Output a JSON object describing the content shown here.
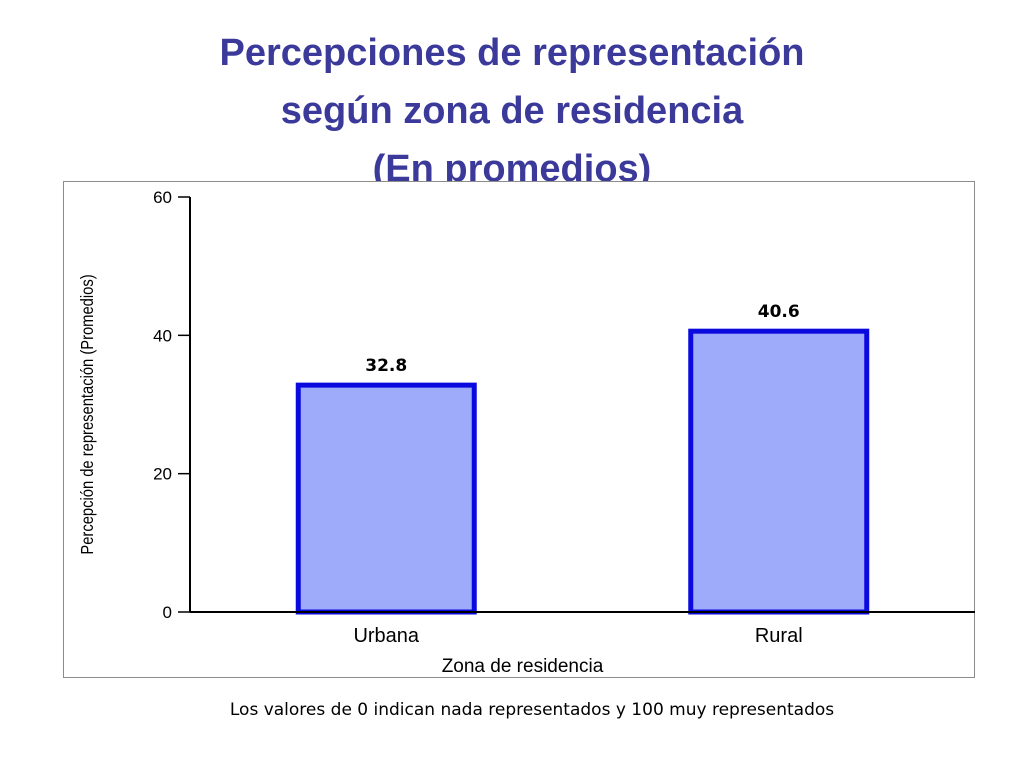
{
  "title": {
    "line1": "Percepciones de representación",
    "line2": "según zona de residencia",
    "line3": "(En promedios)"
  },
  "footnote": "Los valores de 0 indican nada representados y 100 muy representados",
  "colors": {
    "title": "#3b3a9a",
    "bar_fill": "#9dabfa",
    "bar_stroke": "#0a0adf",
    "axis": "#000000",
    "frame": "#8c8c8c"
  },
  "chart_data": {
    "type": "bar",
    "categories": [
      "Urbana",
      "Rural"
    ],
    "values": [
      32.8,
      40.6
    ],
    "data_labels": [
      "32.8",
      "40.6"
    ],
    "xlabel": "Zona de residencia",
    "ylabel": "Percepción de representación (Promedios)",
    "ylim": [
      0,
      60
    ],
    "yticks": [
      0,
      20,
      40,
      60
    ],
    "grid": false,
    "legend": "none"
  }
}
